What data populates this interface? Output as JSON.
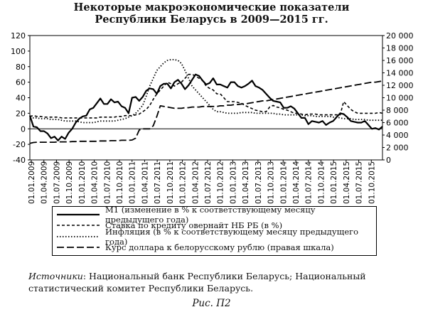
{
  "header": {
    "title_line1": "Некоторые макроэкономические показатели",
    "title_line2": "Республики Беларусь в 2009—2015 гг."
  },
  "chart_data": {
    "type": "line",
    "left_axis": {
      "min": -40,
      "max": 120,
      "ticks": [
        -40,
        -20,
        0,
        20,
        40,
        60,
        80,
        100,
        120
      ]
    },
    "right_axis": {
      "min": 0,
      "max": 20000,
      "ticks": [
        "0",
        "2 000",
        "4 000",
        "6 000",
        "8 000",
        "10 000",
        "12 000",
        "14 000",
        "16 000",
        "18 000",
        "20 000"
      ],
      "tick_values": [
        0,
        2000,
        4000,
        6000,
        8000,
        10000,
        12000,
        14000,
        16000,
        18000,
        20000
      ]
    },
    "x_ticks": [
      "01.01.2009",
      "01.04.2009",
      "01.07.2009",
      "01.10.2009",
      "01.01.2010",
      "01.04.2010",
      "01.07.2010",
      "01.10.2010",
      "01.01.2011",
      "01.04.2011",
      "01.07.2011",
      "01.10.2011",
      "01.01.2012",
      "01.04.2012",
      "01.07.2012",
      "01.10.2012",
      "01.01.2013",
      "01.04.2013",
      "01.07.2013",
      "01.10.2013",
      "01.01.2014",
      "01.04.2014",
      "01.07.2014",
      "01.10.2014",
      "01.01.2015",
      "01.04.2015",
      "01.07.2015",
      "01.10.2015"
    ],
    "series": [
      {
        "name": "М1 (изменение в % к соответствующему месяцу предыдущего года)",
        "style": "solid",
        "axis": "left",
        "values": [
          17,
          3,
          2,
          -3,
          -3,
          -6,
          -12,
          -10,
          -15,
          -10,
          -13,
          -5,
          0,
          8,
          13,
          16,
          17,
          25,
          27,
          33,
          39,
          32,
          32,
          38,
          34,
          35,
          29,
          27,
          20,
          40,
          41,
          36,
          41,
          49,
          52,
          51,
          45,
          55,
          58,
          58,
          52,
          60,
          63,
          58,
          51,
          56,
          63,
          70,
          68,
          62,
          57,
          59,
          65,
          57,
          57,
          55,
          53,
          60,
          60,
          55,
          53,
          55,
          58,
          62,
          55,
          53,
          50,
          45,
          40,
          36,
          35,
          34,
          27,
          27,
          29,
          26,
          20,
          14,
          14,
          6,
          10,
          9,
          8,
          10,
          5,
          8,
          10,
          15,
          20,
          19,
          15,
          10,
          9,
          8,
          8,
          10,
          5,
          0,
          1,
          -1,
          3
        ]
      },
      {
        "name": "Ставка по кредиту овернайт НБ РБ (в %)",
        "style": "dashed",
        "axis": "left",
        "values": [
          16,
          17,
          16,
          16,
          15,
          15,
          15,
          15,
          15,
          14,
          14,
          14,
          14,
          14,
          14,
          14,
          14,
          14,
          14,
          14,
          15,
          15,
          15,
          15,
          15,
          16,
          16,
          17,
          17,
          17,
          18,
          19,
          22,
          25,
          30,
          38,
          45,
          50,
          55,
          60,
          58,
          55,
          58,
          60,
          65,
          70,
          70,
          68,
          65,
          62,
          55,
          52,
          50,
          45,
          45,
          40,
          35,
          35,
          35,
          34,
          33,
          30,
          28,
          26,
          24,
          23,
          22,
          22,
          28,
          30,
          28,
          27,
          25,
          24,
          22,
          20,
          20,
          19,
          18,
          19,
          19,
          19,
          18,
          18,
          18,
          18,
          18,
          18,
          18,
          35,
          30,
          25,
          22,
          20,
          20,
          20,
          20,
          20,
          20,
          21,
          20
        ]
      },
      {
        "name": "Инфляция (в % к соответствующему месяцу предыдущего года)",
        "style": "dotted",
        "axis": "left",
        "values": [
          14,
          14,
          14,
          13,
          13,
          13,
          12,
          12,
          12,
          11,
          10,
          10,
          10,
          10,
          9,
          8,
          8,
          8,
          8,
          9,
          10,
          10,
          10,
          10,
          10,
          11,
          12,
          13,
          15,
          17,
          20,
          25,
          30,
          42,
          55,
          65,
          75,
          80,
          85,
          88,
          89,
          89,
          88,
          84,
          75,
          65,
          55,
          50,
          45,
          40,
          35,
          30,
          25,
          22,
          22,
          21,
          20,
          20,
          20,
          20,
          21,
          21,
          21,
          21,
          20,
          20,
          20,
          20,
          20,
          20,
          19,
          19,
          18,
          18,
          18,
          18,
          18,
          18,
          17,
          17,
          17,
          16,
          16,
          16,
          16,
          16,
          15,
          15,
          14,
          13,
          13,
          13,
          12,
          12,
          12,
          12,
          11,
          11,
          11,
          11,
          11
        ]
      },
      {
        "name": "Курс доллара к белорусскому рублю (правая шкала)",
        "style": "long-dash",
        "axis": "right",
        "values": [
          2650,
          2800,
          2850,
          2850,
          2850,
          2850,
          2850,
          2850,
          2900,
          2900,
          2900,
          2900,
          2950,
          2950,
          3000,
          3000,
          3000,
          3000,
          3000,
          3000,
          3050,
          3050,
          3050,
          3100,
          3100,
          3100,
          3150,
          3150,
          3150,
          3200,
          3500,
          4800,
          5000,
          5000,
          5000,
          5500,
          7000,
          8700,
          8600,
          8500,
          8400,
          8300,
          8300,
          8300,
          8400,
          8400,
          8500,
          8500,
          8500,
          8600,
          8600,
          8600,
          8600,
          8600,
          8700,
          8700,
          8800,
          8800,
          8900,
          8900,
          9000,
          9000,
          9100,
          9200,
          9300,
          9400,
          9500,
          9500,
          9600,
          9700,
          9800,
          9900,
          10000,
          10100,
          10200,
          10300,
          10400,
          10500,
          10600,
          10700,
          10800,
          10900,
          11000,
          11100,
          11200,
          11300,
          11400,
          11500,
          11600,
          11700,
          11800,
          11900,
          12000,
          12100,
          12200,
          12300,
          12400,
          12500,
          12500,
          12600,
          12700
        ]
      }
    ]
  },
  "legend": {
    "items": [
      "М1 (изменение в % к соответствующему месяцу предыдущего года)",
      "Ставка по кредиту овернайт НБ РБ (в %)",
      "Инфляция (в % к соответствующему месяцу предыдущего года)",
      "Курс доллара к белорусскому рублю (правая шкала)"
    ]
  },
  "footer": {
    "source_label": "Источники",
    "source_text": ": Национальный банк Республики Беларусь; Национальный статистический комитет Республики Беларусь.",
    "caption": "Рис. П2"
  }
}
